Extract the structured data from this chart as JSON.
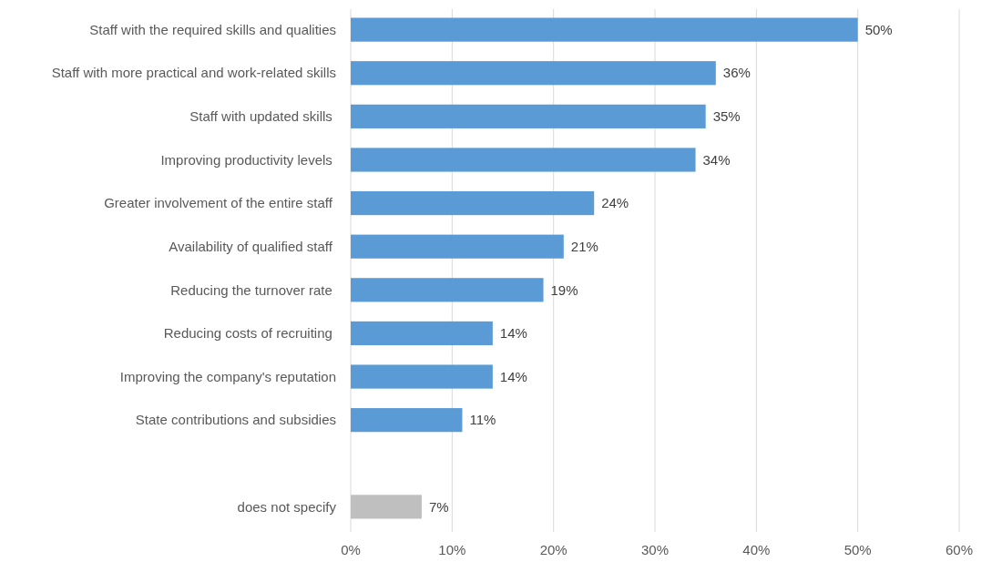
{
  "chart_data": {
    "type": "bar",
    "orientation": "horizontal",
    "categories": [
      "Staff with the required skills and qualities",
      "Staff with more practical and work-related skills",
      "Staff with updated skills ",
      "Improving productivity levels ",
      "Greater involvement of the entire staff ",
      "Availability of qualified staff ",
      "Reducing the turnover rate ",
      "Reducing costs of recruiting ",
      "Improving the company's reputation",
      "State contributions and subsidies",
      null,
      "does not specify"
    ],
    "values": [
      50,
      36,
      35,
      34,
      24,
      21,
      19,
      14,
      14,
      11,
      null,
      7
    ],
    "colors": [
      "#5b9bd5",
      "#5b9bd5",
      "#5b9bd5",
      "#5b9bd5",
      "#5b9bd5",
      "#5b9bd5",
      "#5b9bd5",
      "#5b9bd5",
      "#5b9bd5",
      "#5b9bd5",
      null,
      "#bfbfbf"
    ],
    "value_labels": [
      "50%",
      "36%",
      "35%",
      "34%",
      "24%",
      "21%",
      "19%",
      "14%",
      "14%",
      "11%",
      null,
      "7%"
    ],
    "xlim": [
      0,
      60
    ],
    "xticks": [
      {
        "value": 0,
        "label": "0%"
      },
      {
        "value": 10,
        "label": "10%"
      },
      {
        "value": 20,
        "label": "20%"
      },
      {
        "value": 30,
        "label": "30%"
      },
      {
        "value": 40,
        "label": "40%"
      },
      {
        "value": 50,
        "label": "50%"
      },
      {
        "value": 60,
        "label": "60%"
      }
    ],
    "grid": "x"
  }
}
